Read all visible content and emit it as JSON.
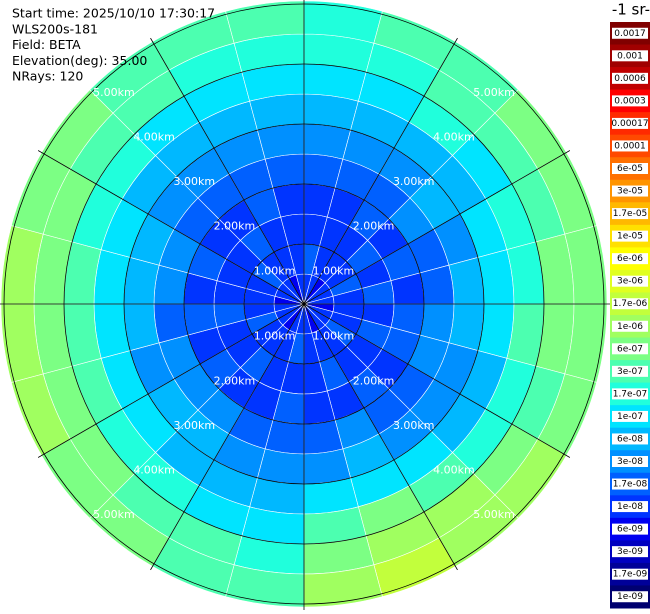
{
  "chart_data": {
    "type": "polar_heatmap",
    "annotations": [
      "Start time: 2025/10/10 17:30:17",
      "WLS200s-181",
      "Field: BETA",
      "Elevation(deg): 35.00",
      "NRays: 120"
    ],
    "azimuth_edges": [
      0,
      15,
      30,
      45,
      60,
      75,
      90,
      105,
      120,
      135,
      150,
      165,
      180,
      195,
      210,
      225,
      240,
      255,
      270,
      285,
      300,
      315,
      330,
      345,
      360
    ],
    "range_bins": [
      0,
      0.5,
      1,
      1.5,
      2,
      2.5,
      3,
      3.5,
      4,
      4.5,
      5.05
    ],
    "rlim": [
      0,
      5.05
    ],
    "rticks": [
      {
        "value": 1,
        "label": "1.00km"
      },
      {
        "value": 2,
        "label": "2.00km"
      },
      {
        "value": 3,
        "label": "3.00km"
      },
      {
        "value": 4,
        "label": "4.00km"
      },
      {
        "value": 5,
        "label": "5.00km"
      }
    ],
    "thetaticks": [
      0,
      30,
      60,
      90,
      120,
      150,
      180,
      210,
      240,
      270,
      300,
      330
    ],
    "grid": true,
    "values": [
      [
        1e-08,
        1.7e-08,
        1e-08,
        1e-08,
        1.7e-08,
        3e-08,
        6e-08,
        1e-07,
        1.7e-07,
        1.7e-07
      ],
      [
        1e-08,
        1e-08,
        1e-08,
        1e-08,
        1.7e-08,
        3e-08,
        6e-08,
        1e-07,
        1.7e-07,
        3e-07
      ],
      [
        6e-09,
        1e-08,
        1e-08,
        1.7e-08,
        1.7e-08,
        3e-08,
        6e-08,
        1.7e-07,
        3e-07,
        3e-07
      ],
      [
        1e-08,
        1e-08,
        1.7e-08,
        1e-08,
        3e-08,
        6e-08,
        6e-08,
        1e-07,
        3e-07,
        6e-07
      ],
      [
        1e-08,
        1.7e-08,
        1e-08,
        1.7e-08,
        1.7e-08,
        3e-08,
        1e-07,
        1.7e-07,
        3e-07,
        6e-07
      ],
      [
        1e-08,
        1e-08,
        1.7e-08,
        1e-08,
        1.7e-08,
        6e-08,
        1e-07,
        1.7e-07,
        6e-07,
        6e-07
      ],
      [
        6e-09,
        1e-08,
        1e-08,
        1.7e-08,
        3e-08,
        6e-08,
        1e-07,
        3e-07,
        6e-07,
        6e-07
      ],
      [
        1e-08,
        1e-08,
        1.7e-08,
        1.7e-08,
        3e-08,
        3e-08,
        6e-08,
        1.7e-07,
        3e-07,
        6e-07
      ],
      [
        1e-08,
        1.7e-08,
        1e-08,
        1e-08,
        1.7e-08,
        3e-08,
        6e-08,
        1.7e-07,
        6e-07,
        1e-06
      ],
      [
        1e-08,
        1e-08,
        1e-08,
        1.7e-08,
        1.7e-08,
        3e-08,
        1e-07,
        3e-07,
        1e-06,
        1e-06
      ],
      [
        6e-09,
        1e-08,
        1.7e-08,
        1e-08,
        3e-08,
        6e-08,
        1e-07,
        6e-07,
        1e-06,
        1.7e-06
      ],
      [
        1e-08,
        1e-08,
        1e-08,
        1e-08,
        1.7e-08,
        3e-08,
        1e-07,
        3e-07,
        6e-07,
        1e-06
      ],
      [
        1e-08,
        1.7e-08,
        1e-08,
        1.7e-08,
        1.7e-08,
        3e-08,
        6e-08,
        1e-07,
        1.7e-07,
        3e-07
      ],
      [
        1e-08,
        1e-08,
        1e-08,
        1e-08,
        1.7e-08,
        3e-08,
        6e-08,
        1e-07,
        3e-07,
        3e-07
      ],
      [
        6e-09,
        1e-08,
        1.7e-08,
        1e-08,
        3e-08,
        6e-08,
        6e-08,
        1.7e-07,
        3e-07,
        6e-07
      ],
      [
        1e-08,
        1e-08,
        1e-08,
        1.7e-08,
        3e-08,
        6e-08,
        1e-07,
        1.7e-07,
        6e-07,
        6e-07
      ],
      [
        1e-08,
        1.7e-08,
        1e-08,
        1e-08,
        3e-08,
        3e-08,
        1e-07,
        3e-07,
        6e-07,
        1e-06
      ],
      [
        1e-08,
        1e-08,
        1.7e-08,
        1.7e-08,
        1.7e-08,
        6e-08,
        1e-07,
        3e-07,
        6e-07,
        1e-06
      ],
      [
        6e-09,
        1e-08,
        1e-08,
        1e-08,
        3e-08,
        6e-08,
        1e-07,
        3e-07,
        6e-07,
        1e-06
      ],
      [
        1e-08,
        1e-08,
        1e-08,
        1.7e-08,
        3e-08,
        6e-08,
        1e-07,
        1.7e-07,
        6e-07,
        6e-07
      ],
      [
        1e-08,
        1.7e-08,
        1e-08,
        1e-08,
        1.7e-08,
        3e-08,
        6e-08,
        1.7e-07,
        3e-07,
        6e-07
      ],
      [
        1e-08,
        1e-08,
        1.7e-08,
        1e-08,
        1.7e-08,
        3e-08,
        6e-08,
        1e-07,
        3e-07,
        3e-07
      ],
      [
        6e-09,
        1e-08,
        1e-08,
        1.7e-08,
        1.7e-08,
        3e-08,
        6e-08,
        1e-07,
        1.7e-07,
        3e-07
      ],
      [
        1e-08,
        1e-08,
        1e-08,
        1e-08,
        1.7e-08,
        3e-08,
        6e-08,
        1e-07,
        1.7e-07,
        3e-07
      ]
    ],
    "colorbar": {
      "title": "-1 sr-",
      "log": true,
      "ticks": [
        0.0017,
        0.001,
        0.0006,
        0.0003,
        0.00017,
        0.0001,
        {
          "value": 6e-05,
          "label": "6e-05"
        },
        {
          "value": 3e-05,
          "label": "3e-05"
        },
        {
          "value": 1.7e-05,
          "label": "1.7e-05"
        },
        {
          "value": 1e-05,
          "label": "1e-05"
        },
        {
          "value": 6e-06,
          "label": "6e-06"
        },
        {
          "value": 3e-06,
          "label": "3e-06"
        },
        {
          "value": 1.7e-06,
          "label": "1.7e-06"
        },
        {
          "value": 1e-06,
          "label": "1e-06"
        },
        {
          "value": 6e-07,
          "label": "6e-07"
        },
        {
          "value": 3e-07,
          "label": "3e-07"
        },
        {
          "value": 1.7e-07,
          "label": "1.7e-07"
        },
        {
          "value": 1e-07,
          "label": "1e-07"
        },
        {
          "value": 6e-08,
          "label": "6e-08"
        },
        {
          "value": 3e-08,
          "label": "3e-08"
        },
        {
          "value": 1.7e-08,
          "label": "1.7e-08"
        },
        {
          "value": 1e-08,
          "label": "1e-08"
        },
        {
          "value": 6e-09,
          "label": "6e-09"
        },
        {
          "value": 3e-09,
          "label": "3e-09"
        },
        {
          "value": 1.7e-09,
          "label": "1.7e-09"
        },
        {
          "value": 1e-09,
          "label": "1e-09"
        }
      ],
      "colors": [
        "#800000",
        "#a00000",
        "#c00000",
        "#ff0000",
        "#ff2a00",
        "#ff4a00",
        "#ff7000",
        "#ff9400",
        "#ffb800",
        "#ffe000",
        "#ffff00",
        "#e0ff20",
        "#c2ff3c",
        "#a0ff60",
        "#7cff84",
        "#4cffb0",
        "#20ffdc",
        "#00e4ff",
        "#00b8ff",
        "#0090ff",
        "#0060ff",
        "#0034ff",
        "#0000f0",
        "#0000c0",
        "#000098",
        "#000070"
      ]
    }
  }
}
